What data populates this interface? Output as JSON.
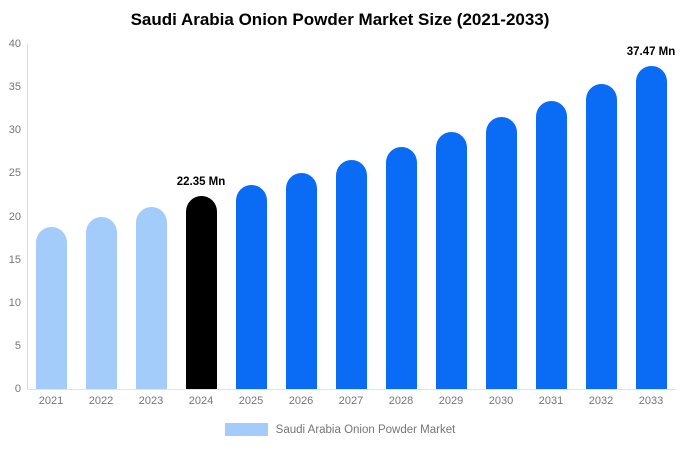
{
  "chart_data": {
    "type": "bar",
    "title": "Saudi Arabia Onion Powder Market Size (2021-2033)",
    "categories": [
      "2021",
      "2022",
      "2023",
      "2024",
      "2025",
      "2026",
      "2027",
      "2028",
      "2029",
      "2030",
      "2031",
      "2032",
      "2033"
    ],
    "values": [
      18.81,
      19.92,
      21.1,
      22.35,
      23.67,
      25.07,
      26.55,
      28.12,
      29.78,
      31.54,
      33.4,
      35.38,
      37.47
    ],
    "unit": "Mn",
    "bar_colors": [
      "#a3ccfb",
      "#a3ccfb",
      "#a3ccfb",
      "#000000",
      "#0a6cf5",
      "#0a6cf5",
      "#0a6cf5",
      "#0a6cf5",
      "#0a6cf5",
      "#0a6cf5",
      "#0a6cf5",
      "#0a6cf5",
      "#0a6cf5"
    ],
    "data_labels": [
      {
        "category": "2024",
        "text": "22.35 Mn"
      },
      {
        "category": "2033",
        "text": "37.47 Mn"
      }
    ],
    "xlabel": "",
    "ylabel": "",
    "ylim": [
      0,
      40
    ],
    "yticks": [
      0,
      5,
      10,
      15,
      20,
      25,
      30,
      35,
      40
    ],
    "grid": false,
    "legend": {
      "label": "Saudi Arabia Onion Powder Market",
      "swatch_color": "#a3ccfb",
      "position": "bottom"
    }
  },
  "styles": {
    "background": "#ffffff",
    "title_color": "#000000",
    "axis_text_color": "#757575",
    "axis_line_color": "#d9d9d9",
    "accent_blue": "#0a6cf5",
    "accent_light_blue": "#a3ccfb",
    "highlight_black": "#000000"
  }
}
